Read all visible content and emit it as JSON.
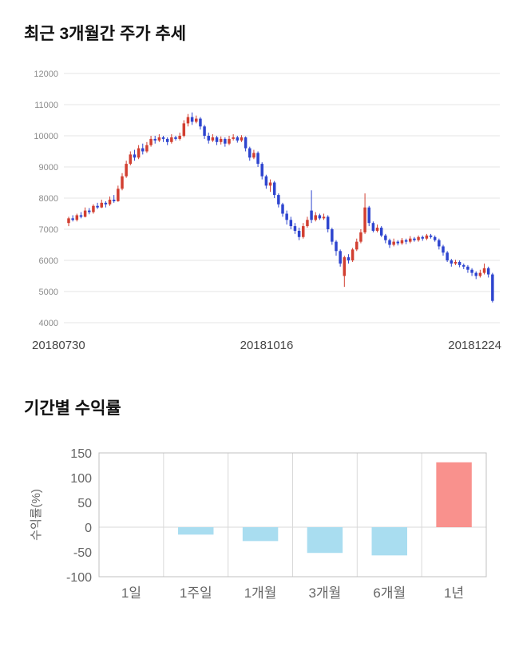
{
  "page": {
    "price_section_title": "최근 3개월간 주가 추세",
    "returns_section_title": "기간별 수익률"
  },
  "chart_data": [
    {
      "type": "candlestick",
      "title": "최근 3개월간 주가 추세",
      "ylim": [
        4000,
        12000
      ],
      "yticks": [
        12000,
        11000,
        10000,
        9000,
        8000,
        7000,
        6000,
        5000,
        4000
      ],
      "x_labels": [
        "20180730",
        "20181016",
        "20181224"
      ],
      "colors": {
        "up": "#d23f31",
        "down": "#2e45cf",
        "grid": "#e4e4e4",
        "tick_text": "#8c8c8c",
        "date_text": "#444444"
      },
      "candles": [
        [
          7200,
          7400,
          7100,
          7350
        ],
        [
          7350,
          7450,
          7250,
          7300
        ],
        [
          7300,
          7500,
          7250,
          7450
        ],
        [
          7450,
          7550,
          7350,
          7400
        ],
        [
          7400,
          7700,
          7380,
          7600
        ],
        [
          7600,
          7680,
          7480,
          7550
        ],
        [
          7550,
          7800,
          7500,
          7750
        ],
        [
          7750,
          7850,
          7650,
          7700
        ],
        [
          7700,
          7950,
          7680,
          7850
        ],
        [
          7850,
          7900,
          7700,
          7800
        ],
        [
          7800,
          8050,
          7750,
          7950
        ],
        [
          7950,
          8100,
          7850,
          7900
        ],
        [
          7900,
          8400,
          7880,
          8300
        ],
        [
          8300,
          8800,
          8250,
          8700
        ],
        [
          8700,
          9200,
          8650,
          9100
        ],
        [
          9100,
          9500,
          9050,
          9400
        ],
        [
          9400,
          9550,
          9200,
          9300
        ],
        [
          9300,
          9700,
          9250,
          9600
        ],
        [
          9600,
          9750,
          9400,
          9500
        ],
        [
          9500,
          9800,
          9450,
          9700
        ],
        [
          9700,
          10000,
          9650,
          9900
        ],
        [
          9900,
          10000,
          9750,
          9850
        ],
        [
          9850,
          10050,
          9800,
          9950
        ],
        [
          9950,
          10000,
          9800,
          9900
        ],
        [
          9900,
          9950,
          9700,
          9800
        ],
        [
          9800,
          10050,
          9750,
          9950
        ],
        [
          9950,
          10000,
          9850,
          9900
        ],
        [
          9900,
          10100,
          9850,
          10000
        ],
        [
          10000,
          10500,
          9950,
          10400
        ],
        [
          10400,
          10700,
          10300,
          10600
        ],
        [
          10600,
          10750,
          10350,
          10450
        ],
        [
          10450,
          10650,
          10400,
          10550
        ],
        [
          10550,
          10600,
          10200,
          10300
        ],
        [
          10300,
          10350,
          9900,
          10000
        ],
        [
          10000,
          10100,
          9750,
          9850
        ],
        [
          9850,
          10050,
          9800,
          9950
        ],
        [
          9950,
          10000,
          9700,
          9800
        ],
        [
          9800,
          9980,
          9720,
          9900
        ],
        [
          9900,
          9950,
          9650,
          9750
        ],
        [
          9750,
          10000,
          9700,
          9900
        ],
        [
          9900,
          10050,
          9850,
          9950
        ],
        [
          9950,
          10000,
          9780,
          9850
        ],
        [
          9850,
          10020,
          9800,
          9950
        ],
        [
          9950,
          9980,
          9500,
          9600
        ],
        [
          9600,
          9650,
          9200,
          9300
        ],
        [
          9300,
          9550,
          9250,
          9450
        ],
        [
          9450,
          9500,
          9000,
          9100
        ],
        [
          9100,
          9150,
          8600,
          8700
        ],
        [
          8700,
          8750,
          8300,
          8400
        ],
        [
          8400,
          8600,
          8200,
          8500
        ],
        [
          8500,
          8550,
          8000,
          8100
        ],
        [
          8100,
          8150,
          7700,
          7800
        ],
        [
          7800,
          7850,
          7400,
          7500
        ],
        [
          7500,
          7600,
          7150,
          7300
        ],
        [
          7300,
          7400,
          7000,
          7100
        ],
        [
          7100,
          7200,
          6850,
          6950
        ],
        [
          6950,
          7050,
          6650,
          6750
        ],
        [
          6750,
          7200,
          6700,
          7100
        ],
        [
          7100,
          7400,
          7050,
          7300
        ],
        [
          7600,
          8250,
          7200,
          7300
        ],
        [
          7300,
          7550,
          7250,
          7450
        ],
        [
          7450,
          7500,
          7300,
          7350
        ],
        [
          7350,
          7500,
          7300,
          7400
        ],
        [
          7400,
          7450,
          6900,
          7000
        ],
        [
          7000,
          7050,
          6500,
          6600
        ],
        [
          6600,
          6650,
          6150,
          6300
        ],
        [
          6300,
          6350,
          5800,
          5900
        ],
        [
          5500,
          6150,
          5150,
          6100
        ],
        [
          6100,
          6200,
          5900,
          6000
        ],
        [
          6000,
          6400,
          5950,
          6350
        ],
        [
          6350,
          6700,
          6300,
          6600
        ],
        [
          6600,
          7000,
          6550,
          6900
        ],
        [
          6900,
          8150,
          6850,
          7700
        ],
        [
          7700,
          7750,
          7100,
          7200
        ],
        [
          7200,
          7250,
          6900,
          6950
        ],
        [
          6950,
          7150,
          6900,
          7050
        ],
        [
          7050,
          7100,
          6750,
          6800
        ],
        [
          6800,
          6850,
          6550,
          6650
        ],
        [
          6650,
          6700,
          6400,
          6500
        ],
        [
          6500,
          6700,
          6450,
          6600
        ],
        [
          6600,
          6650,
          6480,
          6550
        ],
        [
          6550,
          6720,
          6500,
          6650
        ],
        [
          6650,
          6700,
          6520,
          6600
        ],
        [
          6600,
          6780,
          6550,
          6700
        ],
        [
          6700,
          6750,
          6600,
          6650
        ],
        [
          6650,
          6800,
          6600,
          6750
        ],
        [
          6750,
          6800,
          6630,
          6700
        ],
        [
          6700,
          6850,
          6650,
          6800
        ],
        [
          6800,
          6850,
          6700,
          6750
        ],
        [
          6750,
          6800,
          6600,
          6650
        ],
        [
          6650,
          6700,
          6350,
          6450
        ],
        [
          6450,
          6500,
          6150,
          6250
        ],
        [
          6250,
          6300,
          5950,
          6000
        ],
        [
          6000,
          6050,
          5800,
          5900
        ],
        [
          5900,
          6020,
          5850,
          5950
        ],
        [
          5950,
          6000,
          5780,
          5850
        ],
        [
          5850,
          5900,
          5720,
          5800
        ],
        [
          5800,
          5850,
          5600,
          5700
        ],
        [
          5700,
          5750,
          5500,
          5600
        ],
        [
          5600,
          5650,
          5400,
          5500
        ],
        [
          5500,
          5700,
          5450,
          5600
        ],
        [
          5600,
          5900,
          5550,
          5750
        ],
        [
          5750,
          5800,
          5450,
          5550
        ],
        [
          5550,
          5600,
          4650,
          4700
        ]
      ]
    },
    {
      "type": "bar",
      "title": "기간별 수익률",
      "ylabel": "수익률(%)",
      "categories": [
        "1일",
        "1주일",
        "1개월",
        "3개월",
        "6개월",
        "1년"
      ],
      "values": [
        0,
        -15,
        -28,
        -52,
        -57,
        131
      ],
      "ylim": [
        -100,
        150
      ],
      "yticks": [
        150,
        100,
        50,
        0,
        -50,
        -100
      ],
      "colors": {
        "positive": "#f9918d",
        "negative": "#a9ddf0",
        "grid": "#d9d9d9",
        "border": "#c0c0c0",
        "text": "#666666"
      }
    }
  ]
}
